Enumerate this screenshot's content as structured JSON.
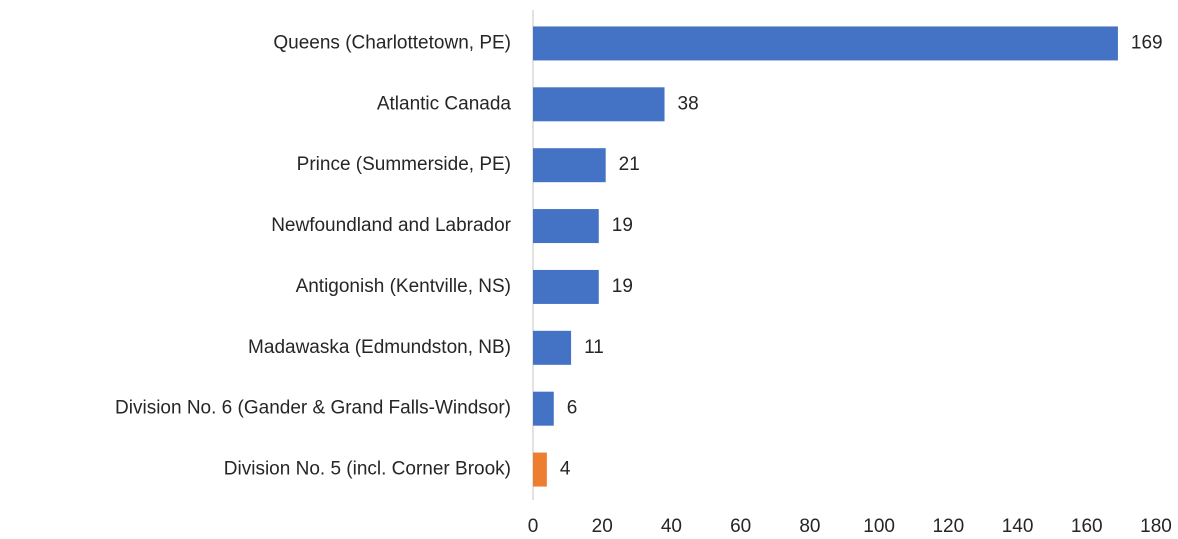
{
  "chart_data": {
    "type": "barh",
    "categories": [
      "Queens (Charlottetown, PE)",
      "Atlantic Canada",
      "Prince (Summerside, PE)",
      "Newfoundland and Labrador",
      "Antigonish (Kentville, NS)",
      "Madawaska (Edmundston, NB)",
      "Division No. 6 (Gander & Grand Falls-Windsor)",
      "Division No. 5 (incl. Corner Brook)"
    ],
    "values": [
      169,
      38,
      21,
      19,
      19,
      11,
      6,
      4
    ],
    "colors": [
      "#4472c4",
      "#4472c4",
      "#4472c4",
      "#4472c4",
      "#4472c4",
      "#4472c4",
      "#4472c4",
      "#ed7d31"
    ],
    "xlim": [
      0,
      180
    ],
    "xticks": [
      0,
      20,
      40,
      60,
      80,
      100,
      120,
      140,
      160,
      180
    ],
    "grid": false
  }
}
